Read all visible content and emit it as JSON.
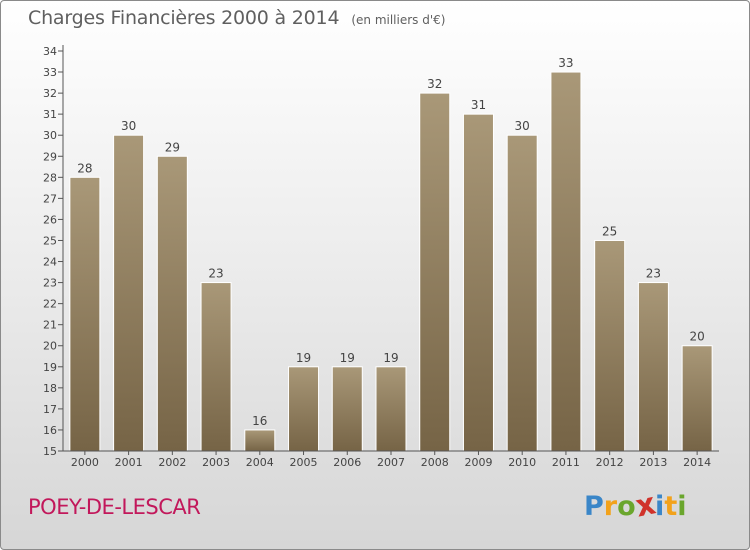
{
  "header": {
    "title": "Charges Financières 2000 à 2014",
    "unit": "(en milliers d'€)"
  },
  "footer": {
    "location": "POEY-DE-LESCAR",
    "brand": "Proxiti",
    "brand_letters": [
      {
        "ch": "P",
        "color": "#3a86c8"
      },
      {
        "ch": "r",
        "color": "#f2a21b"
      },
      {
        "ch": "o",
        "color": "#6aa62d"
      },
      {
        "ch": "x",
        "color": "#d0322a"
      },
      {
        "ch": "i",
        "color": "#3a86c8"
      },
      {
        "ch": "t",
        "color": "#f2a21b"
      },
      {
        "ch": "i",
        "color": "#6aa62d"
      }
    ]
  },
  "colors": {
    "bar_top": "#a99878",
    "bar_bottom": "#766446",
    "axis": "#555555",
    "text": "#444444"
  },
  "chart_data": {
    "type": "bar",
    "categories": [
      "2000",
      "2001",
      "2002",
      "2003",
      "2004",
      "2005",
      "2006",
      "2007",
      "2008",
      "2009",
      "2010",
      "2011",
      "2012",
      "2013",
      "2014"
    ],
    "values": [
      28,
      30,
      29,
      23,
      16,
      19,
      19,
      19,
      32,
      31,
      30,
      33,
      25,
      23,
      20
    ],
    "ylim": [
      15,
      34
    ],
    "yticks": [
      15,
      16,
      17,
      18,
      19,
      20,
      21,
      22,
      23,
      24,
      25,
      26,
      27,
      28,
      29,
      30,
      31,
      32,
      33,
      34
    ],
    "grid": false,
    "legend": "none",
    "data_labels": true
  }
}
